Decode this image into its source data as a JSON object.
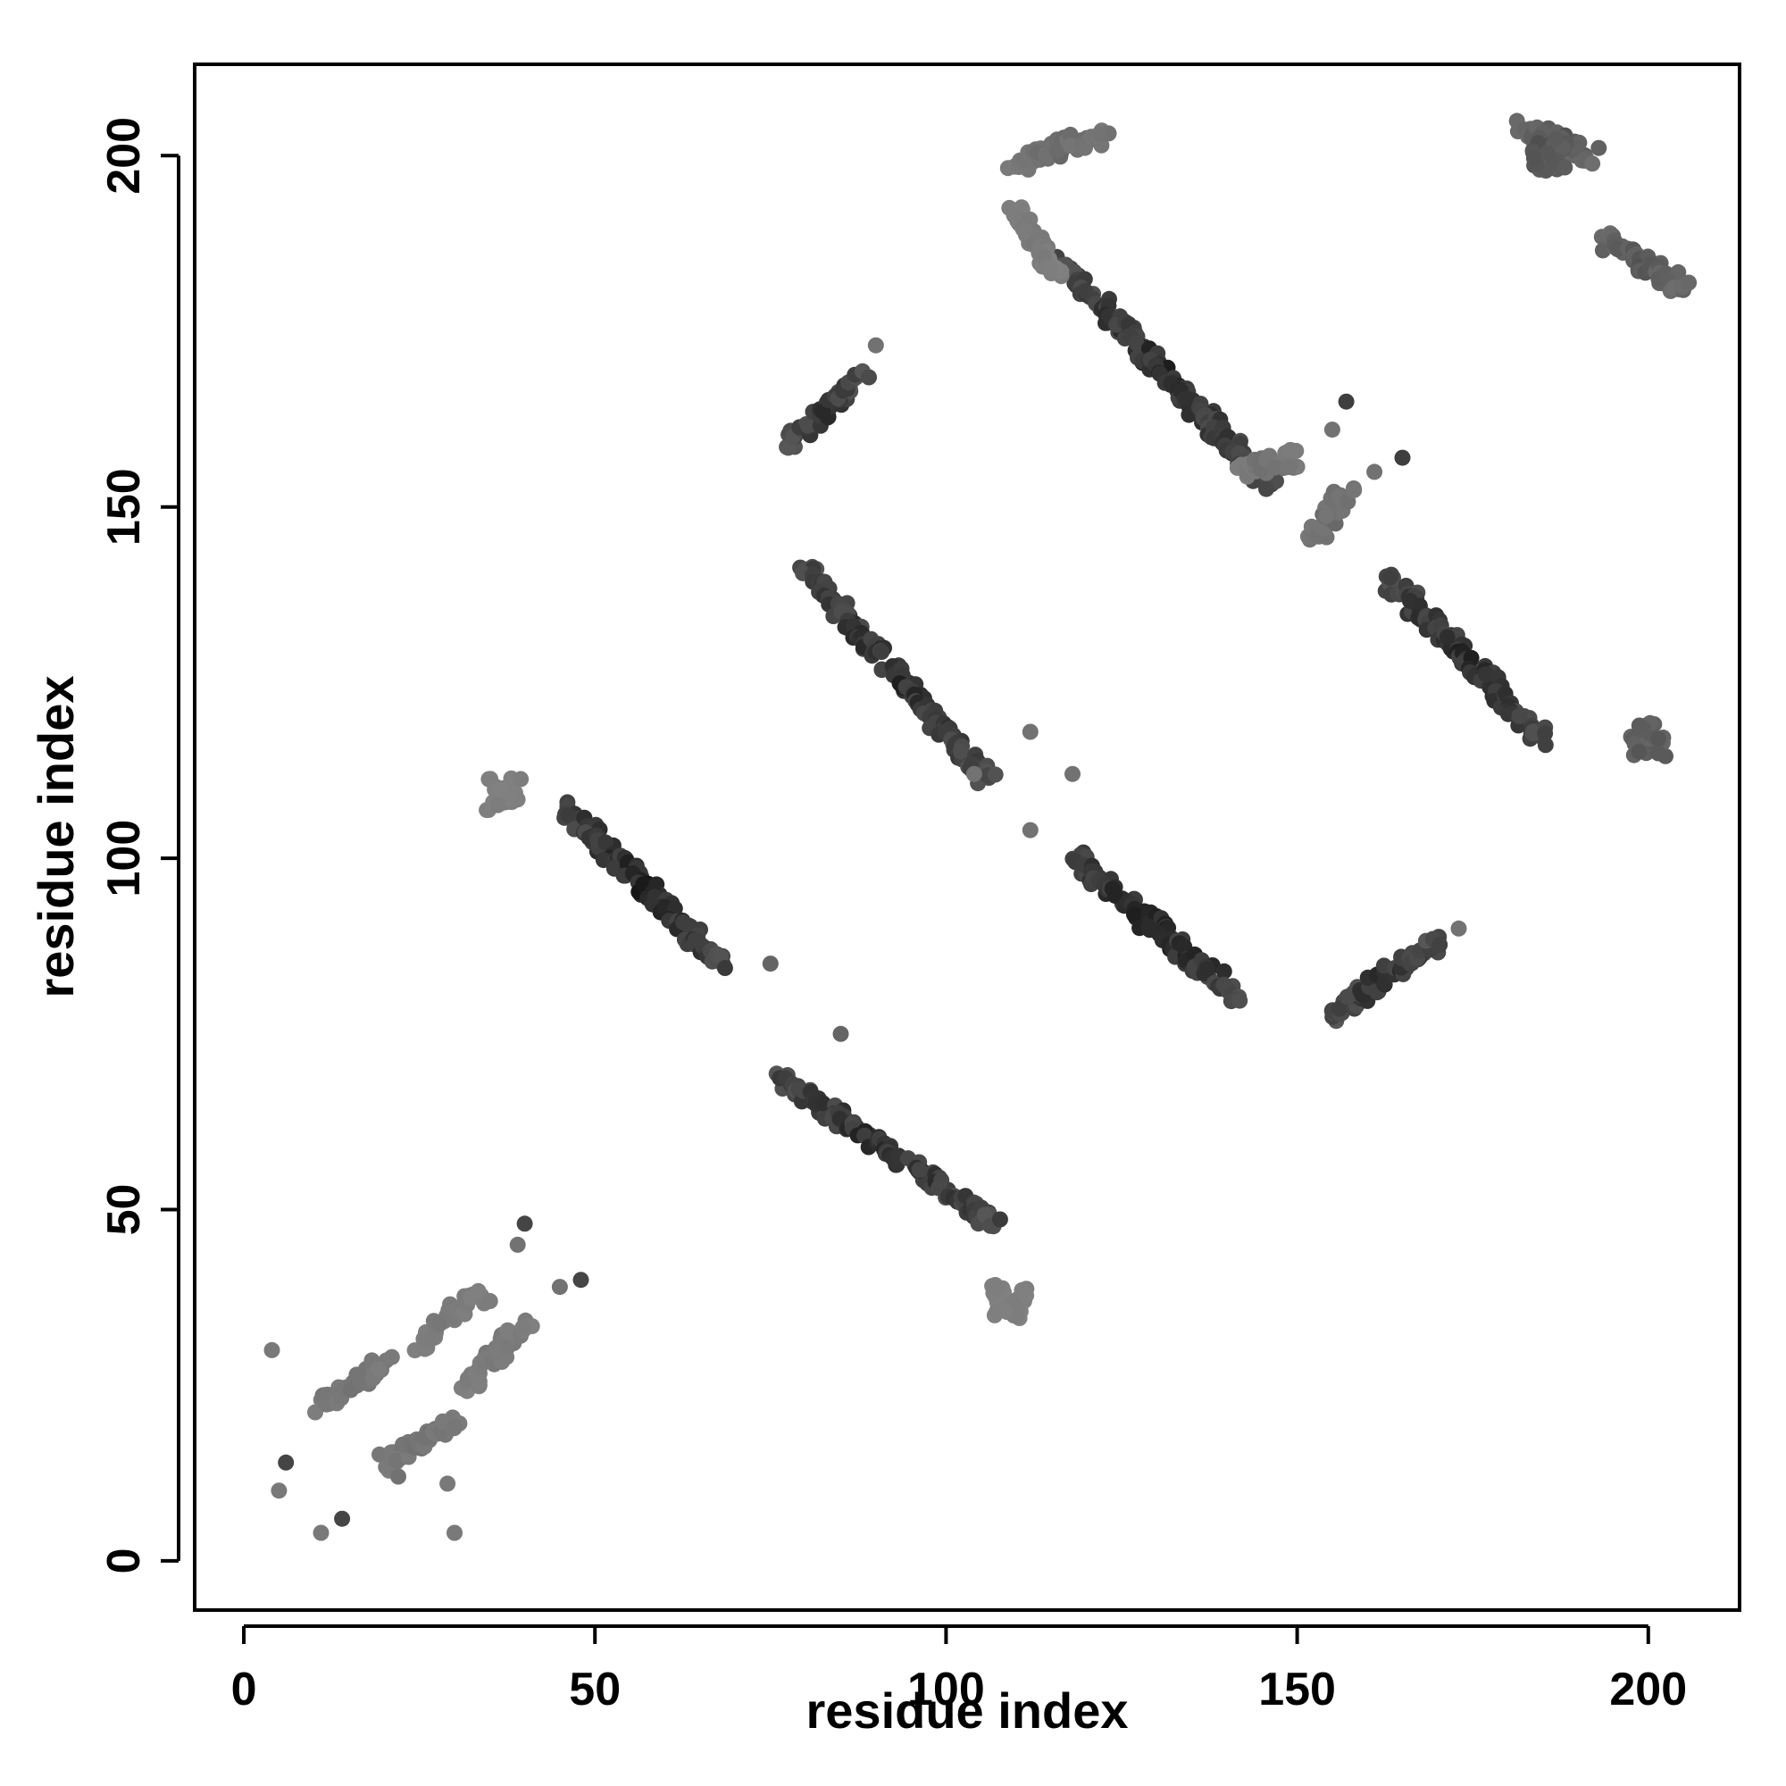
{
  "chart_data": {
    "type": "scatter",
    "title": "",
    "xlabel": "residue index",
    "ylabel": "residue index",
    "xlim": [
      -7,
      213
    ],
    "ylim": [
      -7,
      213
    ],
    "xticks": [
      0,
      50,
      100,
      150,
      200
    ],
    "yticks": [
      0,
      50,
      100,
      150,
      200
    ],
    "grid": false,
    "legend": "none",
    "color_scale": {
      "low": "#8c8c8c",
      "high": "#0a0a0a"
    },
    "segments": [
      {
        "x0": 46,
        "y0": 107,
        "x1": 68,
        "y1": 85,
        "strength": 0.8
      },
      {
        "x0": 76,
        "y0": 69,
        "x1": 107,
        "y1": 48,
        "strength": 0.75
      },
      {
        "x0": 80,
        "y0": 141,
        "x1": 106,
        "y1": 111,
        "strength": 0.75
      },
      {
        "x0": 118,
        "y0": 100,
        "x1": 142,
        "y1": 80,
        "strength": 0.8
      },
      {
        "x0": 116,
        "y0": 185,
        "x1": 146,
        "y1": 153,
        "strength": 0.75
      },
      {
        "x0": 163,
        "y0": 140,
        "x1": 185,
        "y1": 117,
        "strength": 0.75
      },
      {
        "x0": 78,
        "y0": 159,
        "x1": 88,
        "y1": 169,
        "strength": 0.7
      },
      {
        "x0": 155,
        "y0": 78,
        "x1": 170,
        "y1": 88,
        "strength": 0.7
      },
      {
        "x0": 25,
        "y0": 31,
        "x1": 34,
        "y1": 38,
        "strength": 0.15
      },
      {
        "x0": 32,
        "y0": 25,
        "x1": 40,
        "y1": 34,
        "strength": 0.15
      },
      {
        "x0": 20,
        "y0": 14,
        "x1": 30,
        "y1": 20,
        "strength": 0.2
      },
      {
        "x0": 11,
        "y0": 22,
        "x1": 20,
        "y1": 28,
        "strength": 0.2
      },
      {
        "x0": 110,
        "y0": 199,
        "x1": 122,
        "y1": 203,
        "strength": 0.25
      },
      {
        "x0": 182,
        "y0": 204,
        "x1": 192,
        "y1": 200,
        "strength": 0.4
      },
      {
        "x0": 194,
        "y0": 188,
        "x1": 205,
        "y1": 181,
        "strength": 0.4
      },
      {
        "x0": 152,
        "y0": 145,
        "x1": 157,
        "y1": 152,
        "strength": 0.25
      },
      {
        "x0": 142,
        "y0": 155,
        "x1": 150,
        "y1": 157,
        "strength": 0.2
      },
      {
        "x0": 110,
        "y0": 192,
        "x1": 116,
        "y1": 183,
        "strength": 0.15
      }
    ],
    "clusters": [
      {
        "x": 37,
        "y": 109,
        "strength": 0.1
      },
      {
        "x": 109,
        "y": 37,
        "strength": 0.1
      },
      {
        "x": 200,
        "y": 117,
        "strength": 0.35
      },
      {
        "x": 186,
        "y": 200,
        "strength": 0.4
      }
    ],
    "points": [
      [
        4,
        30,
        0.15
      ],
      [
        5,
        10,
        0.15
      ],
      [
        6,
        14,
        0.55
      ],
      [
        11,
        4,
        0.15
      ],
      [
        14,
        6,
        0.55
      ],
      [
        22,
        12,
        0.2
      ],
      [
        29,
        11,
        0.15
      ],
      [
        30,
        4,
        0.15
      ],
      [
        40,
        48,
        0.55
      ],
      [
        48,
        40,
        0.55
      ],
      [
        45,
        39,
        0.2
      ],
      [
        39,
        45,
        0.2
      ],
      [
        157,
        165,
        0.6
      ],
      [
        165,
        157,
        0.6
      ],
      [
        161,
        155,
        0.2
      ],
      [
        155,
        161,
        0.2
      ],
      [
        173,
        90,
        0.2
      ],
      [
        90,
        173,
        0.2
      ],
      [
        85,
        75,
        0.3
      ],
      [
        75,
        85,
        0.3
      ],
      [
        112,
        118,
        0.2
      ],
      [
        118,
        112,
        0.2
      ],
      [
        112,
        104,
        0.2
      ],
      [
        104,
        112,
        0.2
      ]
    ]
  }
}
